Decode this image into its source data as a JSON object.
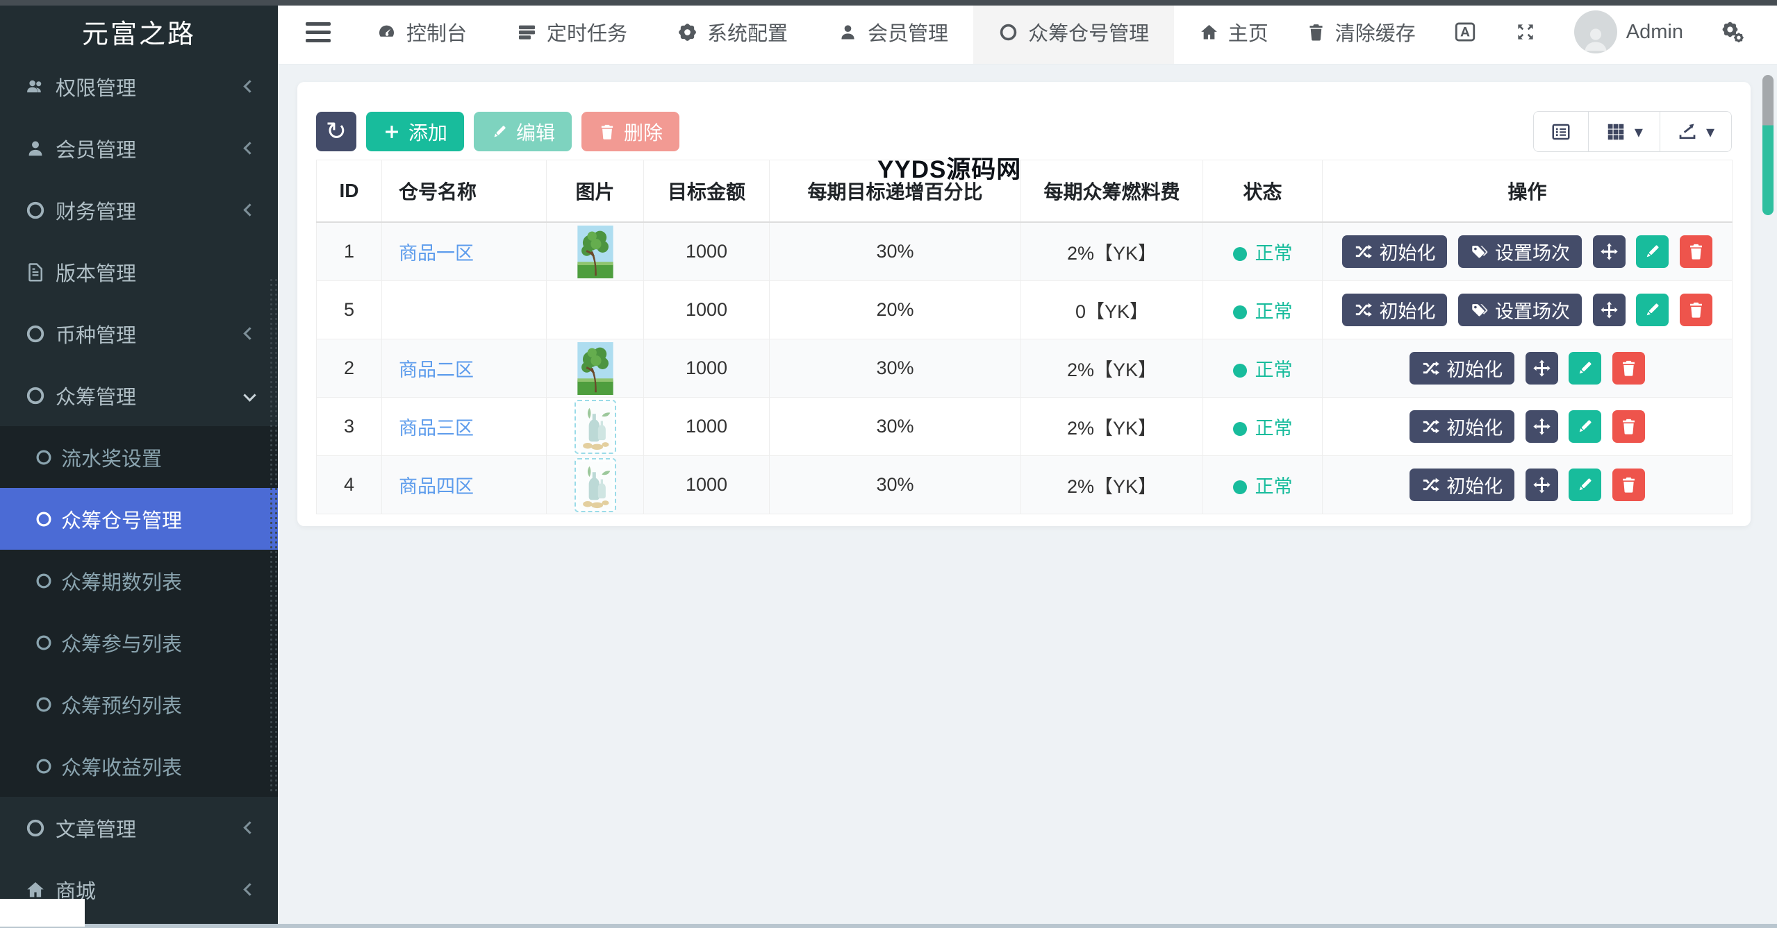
{
  "app": {
    "title": "元富之路"
  },
  "colors": {
    "accent_green": "#18bc9c",
    "danger_red": "#ee544c",
    "dark_button": "#444c69",
    "active_blue": "#4b6bd5",
    "link_blue": "#5d9cec",
    "status_green": "#18bc9c"
  },
  "sidebar": {
    "top_items": [
      {
        "label": "权限管理",
        "icon": "users-icon",
        "chevron": "left"
      },
      {
        "label": "会员管理",
        "icon": "user-icon",
        "chevron": "left"
      },
      {
        "label": "财务管理",
        "icon": "circle-icon",
        "chevron": "left"
      },
      {
        "label": "版本管理",
        "icon": "file-icon",
        "chevron": "none"
      },
      {
        "label": "币种管理",
        "icon": "circle-icon",
        "chevron": "left"
      },
      {
        "label": "众筹管理",
        "icon": "circle-icon",
        "chevron": "down"
      }
    ],
    "submenu_items": [
      {
        "label": "流水奖设置",
        "active": false
      },
      {
        "label": "众筹仓号管理",
        "active": true
      },
      {
        "label": "众筹期数列表",
        "active": false
      },
      {
        "label": "众筹参与列表",
        "active": false
      },
      {
        "label": "众筹预约列表",
        "active": false
      },
      {
        "label": "众筹收益列表",
        "active": false
      }
    ],
    "bottom_items": [
      {
        "label": "文章管理",
        "icon": "circle-icon",
        "chevron": "left"
      },
      {
        "label": "商城",
        "icon": "home-icon",
        "chevron": "left"
      }
    ]
  },
  "navbar": {
    "tabs": [
      {
        "label": "控制台",
        "icon": "dashboard-icon",
        "active": false
      },
      {
        "label": "定时任务",
        "icon": "tasks-icon",
        "active": false
      },
      {
        "label": "系统配置",
        "icon": "gear-icon",
        "active": false
      },
      {
        "label": "会员管理",
        "icon": "user-icon",
        "active": false
      },
      {
        "label": "众筹仓号管理",
        "icon": "circle-icon",
        "active": true
      }
    ],
    "home_label": "主页",
    "clear_cache_label": "清除缓存",
    "username": "Admin"
  },
  "toolbar": {
    "add_label": "添加",
    "edit_label": "编辑",
    "delete_label": "删除"
  },
  "watermark": "YYDS源码网",
  "table": {
    "headers": [
      "ID",
      "仓号名称",
      "图片",
      "目标金额",
      "每期目标递增百分比",
      "每期众筹燃料费",
      "状态",
      "操作"
    ],
    "action_labels": {
      "init": "初始化",
      "session": "设置场次"
    },
    "rows": [
      {
        "id": "1",
        "name": "商品一区",
        "image": "tree",
        "target": "1000",
        "increase": "30%",
        "fuel": "2%【YK】",
        "status": "正常",
        "actions": [
          "init",
          "session",
          "move",
          "edit",
          "delete"
        ]
      },
      {
        "id": "5",
        "name": "",
        "image": "none",
        "target": "1000",
        "increase": "20%",
        "fuel": "0【YK】",
        "status": "正常",
        "actions": [
          "init",
          "session",
          "move",
          "edit",
          "delete"
        ]
      },
      {
        "id": "2",
        "name": "商品二区",
        "image": "tree",
        "target": "1000",
        "increase": "30%",
        "fuel": "2%【YK】",
        "status": "正常",
        "actions": [
          "init",
          "move",
          "edit",
          "delete"
        ]
      },
      {
        "id": "3",
        "name": "商品三区",
        "image": "bottle",
        "target": "1000",
        "increase": "30%",
        "fuel": "2%【YK】",
        "status": "正常",
        "actions": [
          "init",
          "move",
          "edit",
          "delete"
        ]
      },
      {
        "id": "4",
        "name": "商品四区",
        "image": "bottle",
        "target": "1000",
        "increase": "30%",
        "fuel": "2%【YK】",
        "status": "正常",
        "actions": [
          "init",
          "move",
          "edit",
          "delete"
        ]
      }
    ]
  }
}
